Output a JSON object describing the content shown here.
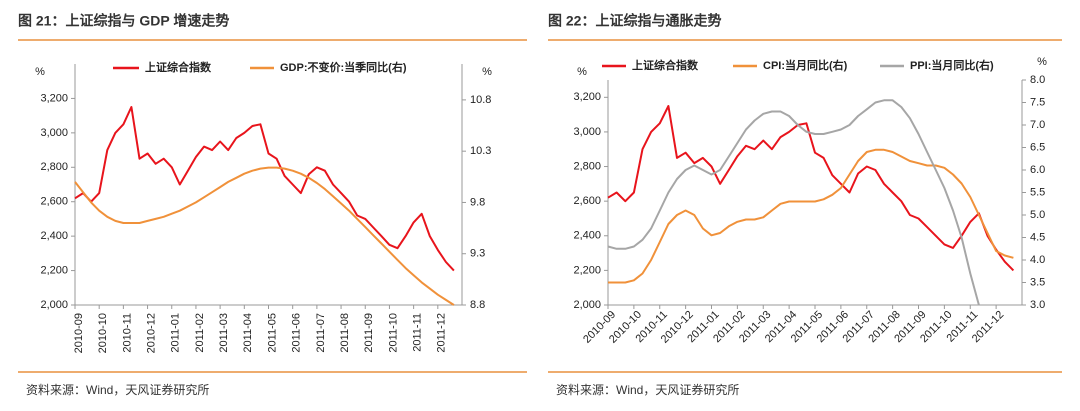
{
  "chart_data": [
    {
      "type": "line",
      "title": "图 21：上证综指与 GDP 增速走势",
      "source": "资料来源：Wind，天风证券研究所",
      "ylabel": "%",
      "y2label": "%",
      "x": [
        "2010-09",
        "2010-09",
        "2010-09",
        "2010-10",
        "2010-10",
        "2010-10",
        "2010-11",
        "2010-11",
        "2010-11",
        "2010-12",
        "2010-12",
        "2010-12",
        "2011-01",
        "2011-01",
        "2011-01",
        "2011-02",
        "2011-02",
        "2011-02",
        "2011-03",
        "2011-03",
        "2011-03",
        "2011-04",
        "2011-04",
        "2011-04",
        "2011-05",
        "2011-05",
        "2011-05",
        "2011-06",
        "2011-06",
        "2011-06",
        "2011-07",
        "2011-07",
        "2011-07",
        "2011-08",
        "2011-08",
        "2011-08",
        "2011-09",
        "2011-09",
        "2011-09",
        "2011-10",
        "2011-10",
        "2011-10",
        "2011-11",
        "2011-11",
        "2011-11",
        "2011-12",
        "2011-12",
        "2011-12"
      ],
      "ylim": [
        2000,
        3400
      ],
      "yticks": [
        {
          "value": 2000,
          "label": "2,000"
        },
        {
          "value": 2200,
          "label": "2,200"
        },
        {
          "value": 2400,
          "label": "2,400"
        },
        {
          "value": 2600,
          "label": "2,600"
        },
        {
          "value": 2800,
          "label": "2,800"
        },
        {
          "value": 3000,
          "label": "3,000"
        },
        {
          "value": 3200,
          "label": "3,200"
        }
      ],
      "y2lim": [
        8.8,
        11.15
      ],
      "y2ticks": [
        8.8,
        9.3,
        9.8,
        10.3,
        10.8
      ],
      "series": [
        {
          "name": "上证综合指数",
          "color": "#e8141c",
          "values": [
            2620,
            2650,
            2600,
            2650,
            2900,
            3000,
            3050,
            3150,
            2850,
            2880,
            2820,
            2850,
            2800,
            2700,
            2780,
            2860,
            2920,
            2900,
            2950,
            2900,
            2970,
            3000,
            3040,
            3050,
            2880,
            2850,
            2750,
            2700,
            2650,
            2760,
            2800,
            2780,
            2700,
            2650,
            2600,
            2520,
            2500,
            2450,
            2400,
            2350,
            2330,
            2400,
            2480,
            2530,
            2400,
            2320,
            2250,
            2200
          ]
        },
        {
          "name": "GDP:不变价:当季同比(右)",
          "color": "#f0913a",
          "axis": "y2",
          "values": [
            10.0,
            9.9,
            9.8,
            9.72,
            9.66,
            9.62,
            9.6,
            9.6,
            9.6,
            9.62,
            9.64,
            9.66,
            9.69,
            9.72,
            9.76,
            9.8,
            9.85,
            9.9,
            9.95,
            10.0,
            10.04,
            10.08,
            10.11,
            10.13,
            10.14,
            10.14,
            10.13,
            10.11,
            10.08,
            10.04,
            9.99,
            9.93,
            9.86,
            9.79,
            9.72,
            9.64,
            9.56,
            9.48,
            9.4,
            9.32,
            9.24,
            9.16,
            9.09,
            9.02,
            8.96,
            8.9,
            8.85,
            8.8
          ]
        }
      ]
    },
    {
      "type": "line",
      "title": "图 22：上证综指与通胀走势",
      "source": "资料来源：Wind，天风证券研究所",
      "ylabel": "%",
      "y2label": "%",
      "x": [
        "2010-09",
        "2010-09",
        "2010-09",
        "2010-10",
        "2010-10",
        "2010-10",
        "2010-11",
        "2010-11",
        "2010-11",
        "2010-12",
        "2010-12",
        "2010-12",
        "2011-01",
        "2011-01",
        "2011-01",
        "2011-02",
        "2011-02",
        "2011-02",
        "2011-03",
        "2011-03",
        "2011-03",
        "2011-04",
        "2011-04",
        "2011-04",
        "2011-05",
        "2011-05",
        "2011-05",
        "2011-06",
        "2011-06",
        "2011-06",
        "2011-07",
        "2011-07",
        "2011-07",
        "2011-08",
        "2011-08",
        "2011-08",
        "2011-09",
        "2011-09",
        "2011-09",
        "2011-10",
        "2011-10",
        "2011-10",
        "2011-11",
        "2011-11",
        "2011-11",
        "2011-12",
        "2011-12",
        "2011-12"
      ],
      "ylim": [
        2000,
        3300
      ],
      "yticks": [
        {
          "value": 2000,
          "label": "2,000"
        },
        {
          "value": 2200,
          "label": "2,200"
        },
        {
          "value": 2400,
          "label": "2,400"
        },
        {
          "value": 2600,
          "label": "2,600"
        },
        {
          "value": 2800,
          "label": "2,800"
        },
        {
          "value": 3000,
          "label": "3,000"
        },
        {
          "value": 3200,
          "label": "3,200"
        }
      ],
      "y2lim": [
        3.0,
        8.0
      ],
      "y2ticks": [
        {
          "value": 3,
          "label": "3.0"
        },
        3.5,
        {
          "value": 4,
          "label": "4.0"
        },
        4.5,
        {
          "value": 5,
          "label": "5.0"
        },
        5.5,
        {
          "value": 6,
          "label": "6.0"
        },
        6.5,
        {
          "value": 7,
          "label": "7.0"
        },
        7.5,
        {
          "value": 8,
          "label": "8.0"
        }
      ],
      "series": [
        {
          "name": "上证综合指数",
          "color": "#e8141c",
          "values": [
            2620,
            2650,
            2600,
            2650,
            2900,
            3000,
            3050,
            3150,
            2850,
            2880,
            2820,
            2850,
            2800,
            2700,
            2780,
            2860,
            2920,
            2900,
            2950,
            2900,
            2970,
            3000,
            3040,
            3050,
            2880,
            2850,
            2750,
            2700,
            2650,
            2760,
            2800,
            2780,
            2700,
            2650,
            2600,
            2520,
            2500,
            2450,
            2400,
            2350,
            2330,
            2400,
            2480,
            2530,
            2400,
            2320,
            2250,
            2200
          ]
        },
        {
          "name": "CPI:当月同比(右)",
          "color": "#f0913a",
          "axis": "y2",
          "values": [
            3.5,
            3.5,
            3.5,
            3.55,
            3.7,
            4.0,
            4.4,
            4.8,
            5.0,
            5.1,
            5.0,
            4.7,
            4.55,
            4.6,
            4.75,
            4.85,
            4.9,
            4.9,
            4.95,
            5.1,
            5.25,
            5.3,
            5.3,
            5.3,
            5.3,
            5.35,
            5.45,
            5.6,
            5.9,
            6.2,
            6.4,
            6.45,
            6.45,
            6.4,
            6.3,
            6.2,
            6.15,
            6.1,
            6.1,
            6.05,
            5.9,
            5.7,
            5.4,
            5.0,
            4.6,
            4.2,
            4.1,
            4.05
          ]
        },
        {
          "name": "PPI:当月同比(右)",
          "color": "#a6a6a6",
          "axis": "y2",
          "values": [
            4.3,
            4.25,
            4.25,
            4.3,
            4.45,
            4.7,
            5.1,
            5.5,
            5.8,
            6.0,
            6.1,
            6.0,
            5.9,
            6.0,
            6.3,
            6.6,
            6.9,
            7.1,
            7.25,
            7.3,
            7.3,
            7.2,
            7.0,
            6.85,
            6.8,
            6.8,
            6.85,
            6.9,
            7.0,
            7.2,
            7.35,
            7.5,
            7.55,
            7.55,
            7.4,
            7.15,
            6.8,
            6.4,
            6.0,
            5.6,
            5.1,
            4.5,
            3.7,
            3.0,
            null,
            null,
            null,
            null
          ]
        }
      ]
    }
  ]
}
